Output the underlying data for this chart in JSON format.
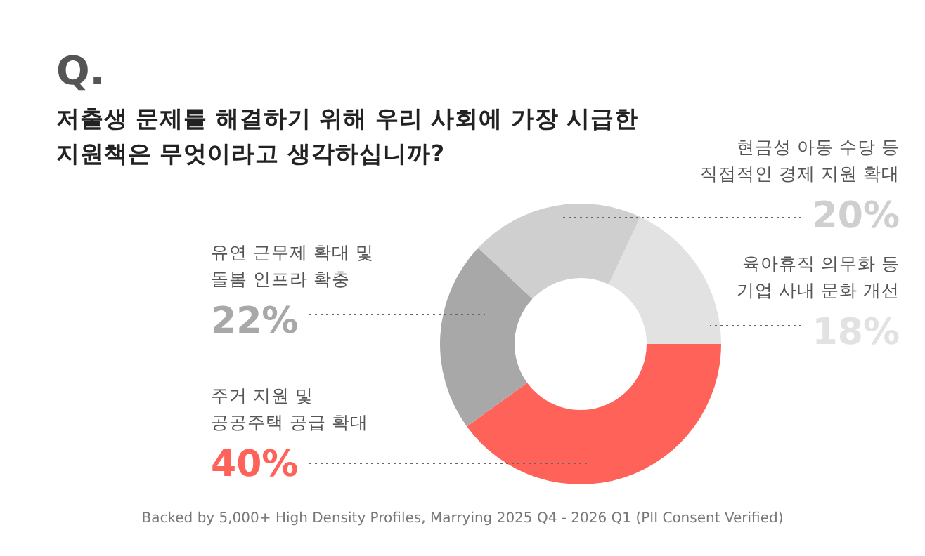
{
  "chart_data": {
    "type": "donut",
    "title": "저출생 문제를 해결하기 위해 우리 사회에 가장 시급한\n지원책은 무엇이라고 생각하십니까?",
    "categories": [
      "주거 지원 및\n공공주택 공급 확대",
      "유연 근무제 확대 및\n돌봄 인프라 확충",
      "현금성 아동 수당 등\n직접적인 경제 지원 확대",
      "육아휴직 의무화 등\n기업 사내 문화 개선"
    ],
    "values": [
      40,
      22,
      20,
      18
    ],
    "colors": [
      "#ff6259",
      "#a8a8a8",
      "#cfcfcf",
      "#e2e2e2"
    ],
    "value_labels": [
      "40%",
      "22%",
      "20%",
      "18%"
    ],
    "annotations": [
      "Q.",
      "Backed by 5,000+ High Density Profiles, Marrying 2025 Q4 - 2026 Q1 (PII Consent Verified)"
    ],
    "legend": false
  }
}
